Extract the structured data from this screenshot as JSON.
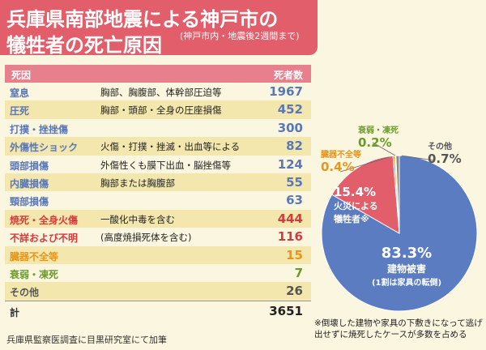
{
  "header": {
    "title_line1": "兵庫県南部地震による神戸市の",
    "title_line2": "犠牲者の死亡原因",
    "subnote": "(神戸市内・地震後2週間まで)"
  },
  "table": {
    "col_cause": "死因",
    "col_count": "死者数",
    "rows": [
      {
        "cause": "窒息",
        "detail": "胸部、胸腹部、体幹部圧迫等",
        "count": "1967",
        "color": "blue"
      },
      {
        "cause": "圧死",
        "detail": "胸部・頭部・全身の圧座損傷",
        "count": "452",
        "color": "blue"
      },
      {
        "cause": "打撲・挫挫傷",
        "detail": "",
        "count": "300",
        "color": "blue"
      },
      {
        "cause": "外傷性ショック",
        "detail": "火傷・打撲・挫滅・出血等による",
        "count": "82",
        "color": "blue"
      },
      {
        "cause": "頭部損傷",
        "detail": "外傷性くも膜下出血・脳挫傷等",
        "count": "124",
        "color": "blue"
      },
      {
        "cause": "内臓損傷",
        "detail": "胸部または胸腹部",
        "count": "55",
        "color": "blue"
      },
      {
        "cause": "頸部損傷",
        "detail": "",
        "count": "63",
        "color": "blue"
      },
      {
        "cause": "焼死・全身火傷",
        "detail": "一酸化中毒を含む",
        "count": "444",
        "color": "red"
      },
      {
        "cause": "不詳および不明",
        "detail": "(高度焼損死体を含む)",
        "count": "116",
        "color": "red"
      },
      {
        "cause": "臓器不全等",
        "detail": "",
        "count": "15",
        "color": "orange"
      },
      {
        "cause": "衰弱・凍死",
        "detail": "",
        "count": "7",
        "color": "green"
      },
      {
        "cause": "その他",
        "detail": "",
        "count": "26",
        "color": "gray"
      }
    ],
    "total_label": "計",
    "total_count": "3651"
  },
  "source": "兵庫県監察医調査に目黒研究室にて加筆",
  "footnote": "※倒壊した建物や家具の下敷きになって逃げ出せずに焼死したケースが多数を占める",
  "chart_data": {
    "type": "pie",
    "slices": [
      {
        "label_line1": "建物被害",
        "label_line2": "(1割は家具の転倒)",
        "value": 83.3,
        "pct": "83.3%",
        "color": "#5b7cc0"
      },
      {
        "label_line1": "火災による",
        "label_line2": "犠牲者※",
        "value": 15.4,
        "pct": "15.4%",
        "color": "#e25e6a"
      },
      {
        "label_line1": "臓器不全等",
        "label_line2": "",
        "value": 0.4,
        "pct": "0.4%",
        "color": "#e8951a"
      },
      {
        "label_line1": "衰弱・凍死",
        "label_line2": "",
        "value": 0.2,
        "pct": "0.2%",
        "color": "#6a9a2a"
      },
      {
        "label_line1": "その他",
        "label_line2": "",
        "value": 0.7,
        "pct": "0.7%",
        "color": "#8a8a8a"
      }
    ]
  }
}
